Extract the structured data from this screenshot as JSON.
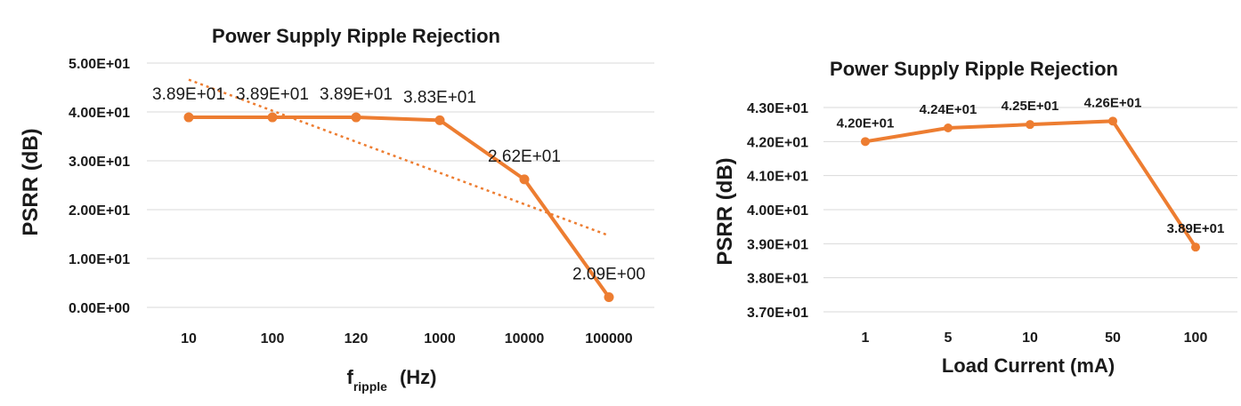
{
  "colors": {
    "series": "#ED7D31",
    "grid": "#D9D9D9",
    "text": "#1A1A1A"
  },
  "chart_data": [
    {
      "type": "line",
      "title": "Power Supply Ripple Rejection",
      "ylabel": "PSRR (dB)",
      "xlabel_main": "f",
      "xlabel_sub": "ripple",
      "xlabel_unit": "(Hz)",
      "categories": [
        "10",
        "100",
        "120",
        "1000",
        "10000",
        "100000"
      ],
      "ylim": [
        0,
        50
      ],
      "yticks": [
        0,
        10,
        20,
        30,
        40,
        50
      ],
      "ytick_labels": [
        "0.00E+00",
        "1.00E+01",
        "2.00E+01",
        "3.00E+01",
        "4.00E+01",
        "5.00E+01"
      ],
      "grid": true,
      "series": [
        {
          "values": [
            38.9,
            38.9,
            38.9,
            38.3,
            26.2,
            2.09
          ],
          "data_labels": [
            "3.89E+01",
            "3.89E+01",
            "3.89E+01",
            "3.83E+01",
            "2.62E+01",
            "2.09E+00"
          ],
          "markers": true
        }
      ],
      "trendline": {
        "type": "linear",
        "style": "dotted",
        "start": 46.6,
        "end": 14.7
      }
    },
    {
      "type": "line",
      "title": "Power Supply Ripple Rejection",
      "ylabel": "PSRR (dB)",
      "xlabel": "Load Current (mA)",
      "categories": [
        "1",
        "5",
        "10",
        "50",
        "100"
      ],
      "ylim": [
        37,
        43
      ],
      "yticks": [
        37,
        38,
        39,
        40,
        41,
        42,
        43
      ],
      "ytick_labels": [
        "3.70E+01",
        "3.80E+01",
        "3.90E+01",
        "4.00E+01",
        "4.10E+01",
        "4.20E+01",
        "4.30E+01"
      ],
      "grid": true,
      "series": [
        {
          "values": [
            42.0,
            42.4,
            42.5,
            42.6,
            38.9
          ],
          "data_labels": [
            "4.20E+01",
            "4.24E+01",
            "4.25E+01",
            "4.26E+01",
            "3.89E+01"
          ],
          "markers": true
        }
      ]
    }
  ]
}
